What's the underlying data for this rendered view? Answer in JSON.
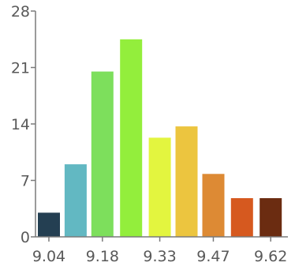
{
  "chart_data": {
    "type": "bar",
    "title": "",
    "xlabel": "",
    "ylabel": "",
    "x_tick_labels": [
      "9.04",
      "9.18",
      "9.33",
      "9.47",
      "9.62"
    ],
    "y_tick_labels": [
      "0",
      "7",
      "14",
      "21",
      "28"
    ],
    "y_ticks": [
      0,
      7,
      14,
      21,
      28
    ],
    "ylim": [
      0,
      28
    ],
    "xlim": [
      9.005,
      9.665
    ],
    "bins": [
      {
        "center": 9.04,
        "value": 3,
        "color": "#243f52"
      },
      {
        "center": 9.11,
        "value": 9,
        "color": "#62b8c2"
      },
      {
        "center": 9.18,
        "value": 20.5,
        "color": "#7ddf5c"
      },
      {
        "center": 9.255,
        "value": 24.5,
        "color": "#93ee3c"
      },
      {
        "center": 9.33,
        "value": 12.3,
        "color": "#e3f53f"
      },
      {
        "center": 9.4,
        "value": 13.7,
        "color": "#ecc53f"
      },
      {
        "center": 9.47,
        "value": 7.8,
        "color": "#dd8a34"
      },
      {
        "center": 9.545,
        "value": 4.8,
        "color": "#d6591f"
      },
      {
        "center": 9.62,
        "value": 4.8,
        "color": "#6b2c11"
      }
    ],
    "x_ticks": [
      9.04,
      9.18,
      9.33,
      9.47,
      9.62
    ],
    "grid": false,
    "legend": "none"
  }
}
